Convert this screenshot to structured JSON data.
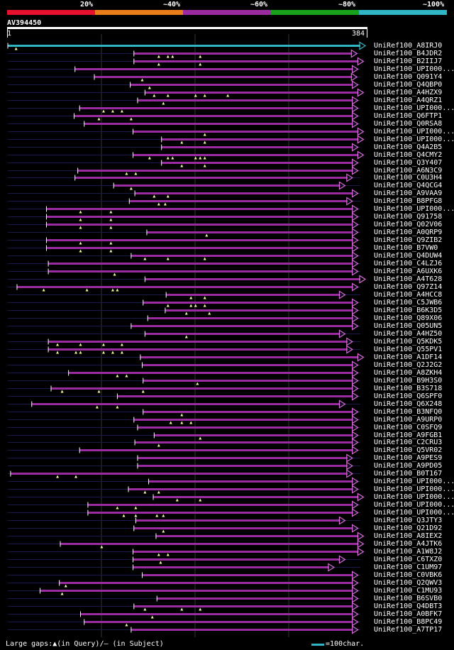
{
  "scale": {
    "labels": [
      "20%",
      "~40%",
      "~60%",
      "~80%",
      "~100%"
    ],
    "colors": [
      "#e8112d",
      "#e87d19",
      "#9b2ba0",
      "#18a11a",
      "#2fb5c3"
    ]
  },
  "query": {
    "id": "AV394450",
    "start": "1",
    "end": "384",
    "length": 384
  },
  "colors": {
    "hit_line": "#9b2ba0",
    "query_line": "#2fb5c3",
    "gap_line": "#1a1a4a",
    "triangle": "#f4f4a0",
    "arrow": "#d66ad8",
    "grid": "#333333"
  },
  "hits": [
    {
      "label": "UniRef100_A8IRJ0",
      "s": 1,
      "e": 384,
      "t": [
        10
      ],
      "q": true
    },
    {
      "label": "UniRef100_B4JDR2",
      "s": 138,
      "e": 375,
      "t": [
        165,
        175,
        180,
        210
      ]
    },
    {
      "label": "UniRef100_B2IIJ7",
      "s": 138,
      "e": 382,
      "t": [
        165,
        210
      ]
    },
    {
      "label": "UniRef100_UPI000...",
      "s": 74,
      "e": 376,
      "t": []
    },
    {
      "label": "UniRef100_Q091Y4",
      "s": 95,
      "e": 375,
      "t": [
        147
      ]
    },
    {
      "label": "UniRef100_Q4QBP0",
      "s": 134,
      "e": 376,
      "t": [
        155
      ]
    },
    {
      "label": "UniRef100_A4HZX9",
      "s": 150,
      "e": 382,
      "t": [
        160,
        175,
        205,
        215,
        240
      ]
    },
    {
      "label": "UniRef100_A4QRZ1",
      "s": 142,
      "e": 376,
      "t": [
        170
      ]
    },
    {
      "label": "UniRef100_UPI000...",
      "s": 79,
      "e": 376,
      "t": [
        105,
        115,
        125
      ]
    },
    {
      "label": "UniRef100_Q6FTP1",
      "s": 73,
      "e": 376,
      "t": [
        100,
        135
      ]
    },
    {
      "label": "UniRef100_Q0RSA8",
      "s": 84,
      "e": 376,
      "t": []
    },
    {
      "label": "UniRef100_UPI000...",
      "s": 137,
      "e": 382,
      "t": [
        215
      ]
    },
    {
      "label": "UniRef100_UPI000...",
      "s": 168,
      "e": 382,
      "t": [
        190,
        215
      ]
    },
    {
      "label": "UniRef100_Q4A2B5",
      "s": 168,
      "e": 376,
      "t": []
    },
    {
      "label": "UniRef100_Q4CMY2",
      "s": 137,
      "e": 382,
      "t": [
        155,
        175,
        180,
        205,
        210,
        215
      ]
    },
    {
      "label": "UniRef100_Q3Y407",
      "s": 168,
      "e": 376,
      "t": [
        190,
        215
      ]
    },
    {
      "label": "UniRef100_A6N3C9",
      "s": 77,
      "e": 376,
      "t": [
        130,
        140
      ]
    },
    {
      "label": "UniRef100_C0U3H4",
      "s": 74,
      "e": 370,
      "t": []
    },
    {
      "label": "UniRef100_Q4QCG4",
      "s": 116,
      "e": 362,
      "t": [
        135
      ]
    },
    {
      "label": "UniRef100_A9VAA9",
      "s": 139,
      "e": 376,
      "t": [
        160,
        175
      ]
    },
    {
      "label": "UniRef100_B8PFG8",
      "s": 133,
      "e": 370,
      "t": [
        165,
        172
      ]
    },
    {
      "label": "UniRef100_UPI000...",
      "s": 43,
      "e": 376,
      "t": [
        80,
        113
      ]
    },
    {
      "label": "UniRef100_Q91758",
      "s": 43,
      "e": 376,
      "t": [
        80,
        113
      ]
    },
    {
      "label": "UniRef100_Q02V06",
      "s": 43,
      "e": 376,
      "t": [
        80,
        113
      ]
    },
    {
      "label": "UniRef100_A0QRP9",
      "s": 152,
      "e": 376,
      "t": [
        217
      ]
    },
    {
      "label": "UniRef100_Q9ZIB2",
      "s": 43,
      "e": 376,
      "t": [
        80,
        113
      ]
    },
    {
      "label": "UniRef100_B7VW0",
      "s": 43,
      "e": 376,
      "t": [
        80,
        113
      ]
    },
    {
      "label": "UniRef100_Q4DUW4",
      "s": 135,
      "e": 376,
      "t": [
        150,
        175,
        215
      ]
    },
    {
      "label": "UniRef100_C4LZJ6",
      "s": 45,
      "e": 376,
      "t": []
    },
    {
      "label": "UniRef100_A6UXK6",
      "s": 45,
      "e": 376,
      "t": [
        117
      ]
    },
    {
      "label": "UniRef100_A4T628",
      "s": 150,
      "e": 384,
      "t": []
    },
    {
      "label": "UniRef100_Q97Z14",
      "s": 11,
      "e": 376,
      "t": [
        40,
        87,
        115,
        120
      ]
    },
    {
      "label": "UniRef100_A4HCC8",
      "s": 173,
      "e": 362,
      "t": [
        200,
        215
      ]
    },
    {
      "label": "UniRef100_C5JWB6",
      "s": 148,
      "e": 376,
      "t": [
        175,
        200,
        205,
        215
      ]
    },
    {
      "label": "UniRef100_B6K3D5",
      "s": 172,
      "e": 376,
      "t": [
        195,
        220
      ]
    },
    {
      "label": "UniRef100_Q89X06",
      "s": 153,
      "e": 376,
      "t": []
    },
    {
      "label": "UniRef100_Q05UN5",
      "s": 135,
      "e": 376,
      "t": []
    },
    {
      "label": "UniRef100_A4HZ50",
      "s": 150,
      "e": 362,
      "t": [
        195
      ]
    },
    {
      "label": "UniRef100_Q5KDK5",
      "s": 45,
      "e": 370,
      "t": [
        55,
        80,
        105,
        125
      ]
    },
    {
      "label": "UniRef100_Q55PV1",
      "s": 45,
      "e": 370,
      "t": [
        55,
        75,
        80,
        105,
        115,
        125
      ]
    },
    {
      "label": "UniRef100_A1DF14",
      "s": 145,
      "e": 382,
      "t": []
    },
    {
      "label": "UniRef100_Q2J2G2",
      "s": 147,
      "e": 376,
      "t": []
    },
    {
      "label": "UniRef100_A8ZKH4",
      "s": 67,
      "e": 376,
      "t": [
        120,
        130
      ]
    },
    {
      "label": "UniRef100_B9H3S0",
      "s": 148,
      "e": 376,
      "t": [
        207
      ]
    },
    {
      "label": "UniRef100_B3S718",
      "s": 48,
      "e": 376,
      "t": [
        60,
        100,
        148
      ]
    },
    {
      "label": "UniRef100_Q6SPF0",
      "s": 120,
      "e": 376,
      "t": []
    },
    {
      "label": "UniRef100_Q6X248",
      "s": 27,
      "e": 362,
      "t": [
        98,
        120
      ]
    },
    {
      "label": "UniRef100_B3NFQ0",
      "s": 148,
      "e": 376,
      "t": [
        190
      ]
    },
    {
      "label": "UniRef100_A9URP0",
      "s": 138,
      "e": 376,
      "t": [
        178,
        190,
        200
      ]
    },
    {
      "label": "UniRef100_C0SFQ9",
      "s": 142,
      "e": 376,
      "t": []
    },
    {
      "label": "UniRef100_A9FGB1",
      "s": 160,
      "e": 376,
      "t": [
        210
      ]
    },
    {
      "label": "UniRef100_C2CRU3",
      "s": 139,
      "e": 376,
      "t": [
        165
      ]
    },
    {
      "label": "UniRef100_Q5VR02",
      "s": 79,
      "e": 376,
      "t": []
    },
    {
      "label": "UniRef100_A9PES9",
      "s": 142,
      "e": 370,
      "t": []
    },
    {
      "label": "UniRef100_A9PD05",
      "s": 142,
      "e": 370,
      "t": []
    },
    {
      "label": "UniRef100_B0T167",
      "s": 4,
      "e": 370,
      "t": [
        55,
        75
      ]
    },
    {
      "label": "UniRef100_UPI000...",
      "s": 154,
      "e": 376,
      "t": []
    },
    {
      "label": "UniRef100_UPI000...",
      "s": 132,
      "e": 376,
      "t": [
        150,
        165
      ]
    },
    {
      "label": "UniRef100_UPI000...",
      "s": 159,
      "e": 382,
      "t": [
        185,
        210
      ]
    },
    {
      "label": "UniRef100_UPI000...",
      "s": 88,
      "e": 376,
      "t": [
        120,
        140
      ]
    },
    {
      "label": "UniRef100_UPI000...",
      "s": 88,
      "e": 376,
      "t": [
        127,
        140,
        163,
        170
      ]
    },
    {
      "label": "UniRef100_Q3JTY3",
      "s": 140,
      "e": 362,
      "t": []
    },
    {
      "label": "UniRef100_Q21D92",
      "s": 138,
      "e": 376,
      "t": [
        170
      ]
    },
    {
      "label": "UniRef100_A8IEX2",
      "s": 162,
      "e": 382,
      "t": []
    },
    {
      "label": "UniRef100_A4JTK6",
      "s": 58,
      "e": 382,
      "t": [
        103
      ]
    },
    {
      "label": "UniRef100_A1W8J2",
      "s": 137,
      "e": 382,
      "t": [
        165,
        175
      ]
    },
    {
      "label": "UniRef100_C6TXZ0",
      "s": 137,
      "e": 362,
      "t": [
        167
      ]
    },
    {
      "label": "UniRef100_C1UM97",
      "s": 137,
      "e": 350,
      "t": []
    },
    {
      "label": "UniRef100_C0VBK6",
      "s": 147,
      "e": 376,
      "t": []
    },
    {
      "label": "UniRef100_Q2QWV3",
      "s": 57,
      "e": 376,
      "t": [
        64
      ]
    },
    {
      "label": "UniRef100_C1MU93",
      "s": 36,
      "e": 376,
      "t": [
        60
      ]
    },
    {
      "label": "UniRef100_B6SVB0",
      "s": 163,
      "e": 376,
      "t": []
    },
    {
      "label": "UniRef100_Q4DBT3",
      "s": 138,
      "e": 376,
      "t": [
        150,
        190,
        210
      ]
    },
    {
      "label": "UniRef100_A0BFK7",
      "s": 80,
      "e": 376,
      "t": [
        158
      ]
    },
    {
      "label": "UniRef100_B8PC49",
      "s": 84,
      "e": 376,
      "t": [
        130
      ]
    },
    {
      "label": "UniRef100_A7TP17",
      "s": 135,
      "e": 376,
      "t": []
    }
  ],
  "footer": {
    "gaps_text": "Large gaps:▲(in Query)/– (in Subject)",
    "scale_text": "=100char."
  }
}
